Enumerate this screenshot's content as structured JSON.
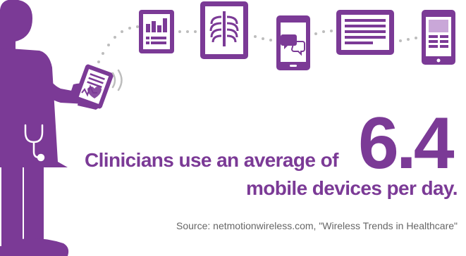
{
  "headline": {
    "lead": "Clinicians use an average of",
    "number": "6.4",
    "tail": "mobile devices per day."
  },
  "source": "Source: netmotionwireless.com, \"Wireless Trends in Healthcare\"",
  "icons": [
    "chart-tablet-icon",
    "xray-tablet-icon",
    "chat-phone-icon",
    "document-tablet-icon",
    "layout-phone-icon"
  ],
  "colors": {
    "purple": "#7B3A96",
    "light_purple": "#C9A7D8",
    "dots": "#BDBDBD",
    "text_gray": "#666666"
  }
}
